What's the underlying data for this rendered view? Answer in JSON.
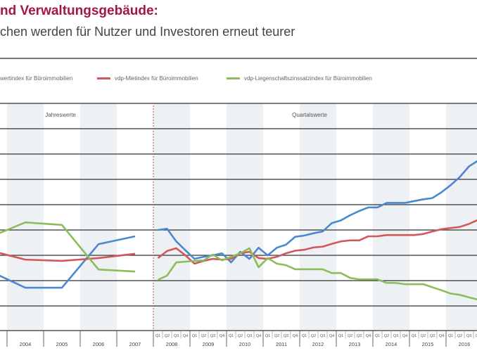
{
  "header": {
    "title": "nd Verwaltungsgebäude:",
    "subtitle": "chen werden für Nutzer und Investoren erneut teurer"
  },
  "colors": {
    "title": "#a3183f",
    "blue": "#4a88cf",
    "red": "#d2575a",
    "green": "#8dbd5a",
    "shade": "#eef1f4"
  },
  "chart_data": {
    "type": "line",
    "title": "nd Verwaltungsgebäude:",
    "subtitle": "chen werden für Nutzer und Investoren erneut teurer",
    "section_labels": {
      "annual": "Jahreswerte",
      "quarterly": "Quartalswerte"
    },
    "legend_position": "top",
    "grid": true,
    "ylim": [
      70,
      160
    ],
    "annual_years": [
      "2003",
      "2004",
      "2005",
      "2006",
      "2007"
    ],
    "annual_tick_labels": [
      "2004",
      "2005",
      "2006",
      "2007"
    ],
    "quarter_years": [
      "2008",
      "2009",
      "2010",
      "2011",
      "2012",
      "2013",
      "2014",
      "2015",
      "2016"
    ],
    "quarter_labels": [
      "Q1",
      "Q2",
      "Q3",
      "Q4"
    ],
    "series": [
      {
        "name": "wertindex für Büroimmobilien",
        "color": "#4a88cf",
        "annual": [
          94,
          87.2,
          87.2,
          104.4,
          107.5
        ],
        "quarterly": [
          110,
          110.5,
          105.5,
          102,
          98.6,
          99.4,
          100,
          100.8,
          97.2,
          101.4,
          98.6,
          103,
          100,
          103,
          104.2,
          107.3,
          107.8,
          108.7,
          109.4,
          112.7,
          113.8,
          115.8,
          117.5,
          118.9,
          118.9,
          120.7,
          120.7,
          120.7,
          121.4,
          122.1,
          122.6,
          124.9,
          127.7,
          130.9,
          135.1,
          137.4
        ]
      },
      {
        "name": "vdp-Mietindex für Büroimmobilien",
        "color": "#d2575a",
        "annual": [
          102,
          98.3,
          97.8,
          98.9,
          100.6
        ],
        "quarterly": [
          98.9,
          101.7,
          102.8,
          100,
          96.7,
          97.8,
          98.6,
          98.3,
          98.6,
          100.8,
          101.4,
          98.9,
          98.6,
          99.4,
          100.8,
          101.8,
          102.2,
          103.1,
          103.4,
          104.5,
          105.5,
          105.9,
          105.9,
          107.5,
          107.5,
          108,
          108,
          108,
          108,
          108.4,
          109.4,
          110.3,
          110.8,
          111.2,
          112.4,
          114
        ]
      },
      {
        "name": "vdp-Liegenschaftszinssatzindex für Büroimmobilien",
        "color": "#8dbd5a",
        "annual": [
          107,
          113,
          112,
          94.4,
          93.6
        ],
        "quarterly": [
          90.3,
          92,
          97.2,
          97.5,
          97.8,
          98,
          100.3,
          98,
          99.4,
          100.8,
          102.8,
          95.3,
          98.9,
          96.7,
          96.1,
          94.5,
          94.5,
          94.5,
          94.5,
          93,
          93,
          91.1,
          90.5,
          90.5,
          90.5,
          89.1,
          89.1,
          88.6,
          88.6,
          88.6,
          87.4,
          86.2,
          84.9,
          84.4,
          83.4,
          82.5
        ]
      }
    ]
  }
}
